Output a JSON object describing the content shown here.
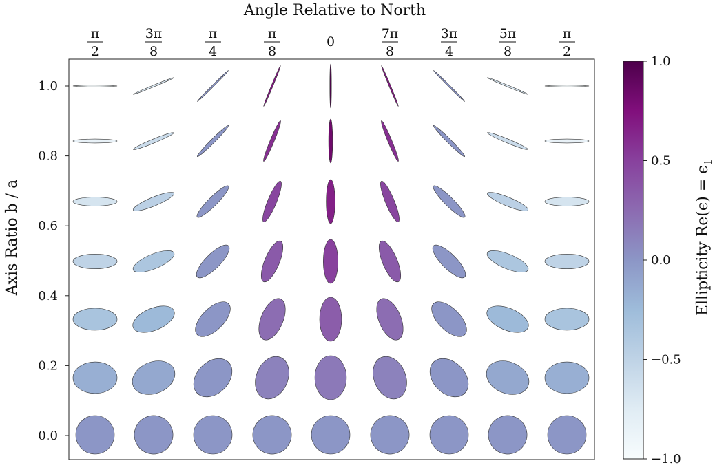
{
  "chart_data": {
    "type": "scatter",
    "title": "Angle Relative to North",
    "xlabel": "Angle Relative to North",
    "ylabel": "Axis Ratio  b / a",
    "colorbar_label": "Ellipticity Re(ϵ) = ϵ",
    "colorbar_label_subscript": "1",
    "x_tick_labels": [
      {
        "num": "π",
        "den": "2"
      },
      {
        "num": "3π",
        "den": "8"
      },
      {
        "num": "π",
        "den": "4"
      },
      {
        "num": "π",
        "den": "8"
      },
      {
        "num": "0",
        "den": ""
      },
      {
        "num": "7π",
        "den": "8"
      },
      {
        "num": "3π",
        "den": "4"
      },
      {
        "num": "5π",
        "den": "8"
      },
      {
        "num": "π",
        "den": "2"
      }
    ],
    "angles_deg": [
      90,
      67.5,
      45,
      22.5,
      0,
      -22.5,
      -45,
      -67.5,
      -90
    ],
    "y_tick_labels": [
      "0.0",
      "0.2",
      "0.4",
      "0.6",
      "0.8",
      "1.0"
    ],
    "y_ticks": [
      0.0,
      0.2,
      0.4,
      0.6,
      0.8,
      1.0
    ],
    "ellipticity_rows": [
      0.0,
      0.166,
      0.333,
      0.5,
      0.666,
      0.833,
      1.0
    ],
    "ylim": [
      -0.07,
      1.07
    ],
    "colorbar": {
      "min": -1.0,
      "max": 1.0,
      "tick_labels": [
        "−1.0",
        "−0.5",
        "0.0",
        "0.5",
        "1.0"
      ],
      "ticks": [
        -1.0,
        -0.5,
        0.0,
        0.5,
        1.0
      ],
      "colormap": "BuPu",
      "stops": [
        {
          "v": -1.0,
          "color": "#f7fcfd"
        },
        {
          "v": -0.75,
          "color": "#e0ecf4"
        },
        {
          "v": -0.5,
          "color": "#bfd3e6"
        },
        {
          "v": -0.25,
          "color": "#9ebcda"
        },
        {
          "v": 0.0,
          "color": "#8c96c6"
        },
        {
          "v": 0.25,
          "color": "#8c6bb1"
        },
        {
          "v": 0.5,
          "color": "#88419d"
        },
        {
          "v": 0.75,
          "color": "#810f7c"
        },
        {
          "v": 1.0,
          "color": "#4d004b"
        }
      ]
    },
    "grid": false,
    "legend": "none"
  }
}
